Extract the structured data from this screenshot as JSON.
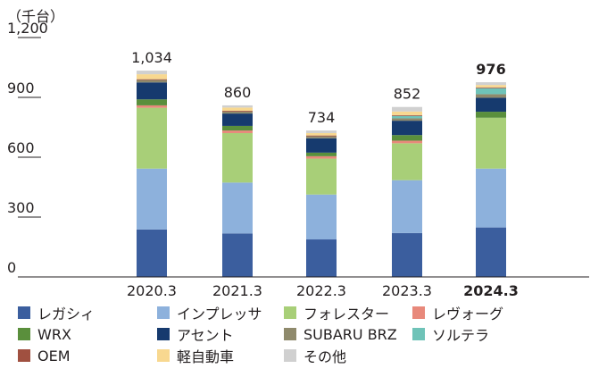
{
  "chart_data": {
    "type": "bar",
    "stacked": true,
    "unit_label": "（千台）",
    "ylim": [
      0,
      1200
    ],
    "y_ticks": [
      {
        "value": 0,
        "label": "0"
      },
      {
        "value": 300,
        "label": "300"
      },
      {
        "value": 600,
        "label": "600"
      },
      {
        "value": 900,
        "label": "900"
      },
      {
        "value": 1200,
        "label": "1,200"
      }
    ],
    "categories": [
      "2020.3",
      "2021.3",
      "2022.3",
      "2023.3",
      "2024.3"
    ],
    "totals": [
      "1,034",
      "860",
      "734",
      "852",
      "976"
    ],
    "total_values": [
      1034,
      860,
      734,
      852,
      976
    ],
    "series": [
      {
        "name": "レガシィ",
        "color": "#3b5e9e",
        "values": [
          238,
          218,
          188,
          220,
          248
        ]
      },
      {
        "name": "インプレッサ",
        "color": "#8db1dc",
        "values": [
          305,
          255,
          225,
          265,
          295
        ]
      },
      {
        "name": "フォレスター",
        "color": "#a8cf78",
        "values": [
          305,
          248,
          180,
          185,
          255
        ]
      },
      {
        "name": "レヴォーグ",
        "color": "#e8897b",
        "values": [
          12,
          13,
          12,
          13,
          0
        ]
      },
      {
        "name": "WRX",
        "color": "#5a8f3c",
        "values": [
          30,
          23,
          18,
          28,
          30
        ]
      },
      {
        "name": "アセント",
        "color": "#163a6e",
        "values": [
          85,
          62,
          72,
          72,
          70
        ]
      },
      {
        "name": "SUBARU BRZ",
        "color": "#8f8a6c",
        "values": [
          12,
          10,
          10,
          12,
          18
        ]
      },
      {
        "name": "ソルテラ",
        "color": "#6fc3b8",
        "values": [
          0,
          0,
          0,
          12,
          30
        ]
      },
      {
        "name": "OEM",
        "color": "#a05040",
        "values": [
          4,
          4,
          4,
          4,
          4
        ]
      },
      {
        "name": "軽自動車",
        "color": "#f8d890",
        "values": [
          25,
          16,
          12,
          18,
          12
        ]
      },
      {
        "name": "その他",
        "color": "#d0d0d0",
        "values": [
          18,
          11,
          13,
          23,
          14
        ]
      }
    ]
  }
}
